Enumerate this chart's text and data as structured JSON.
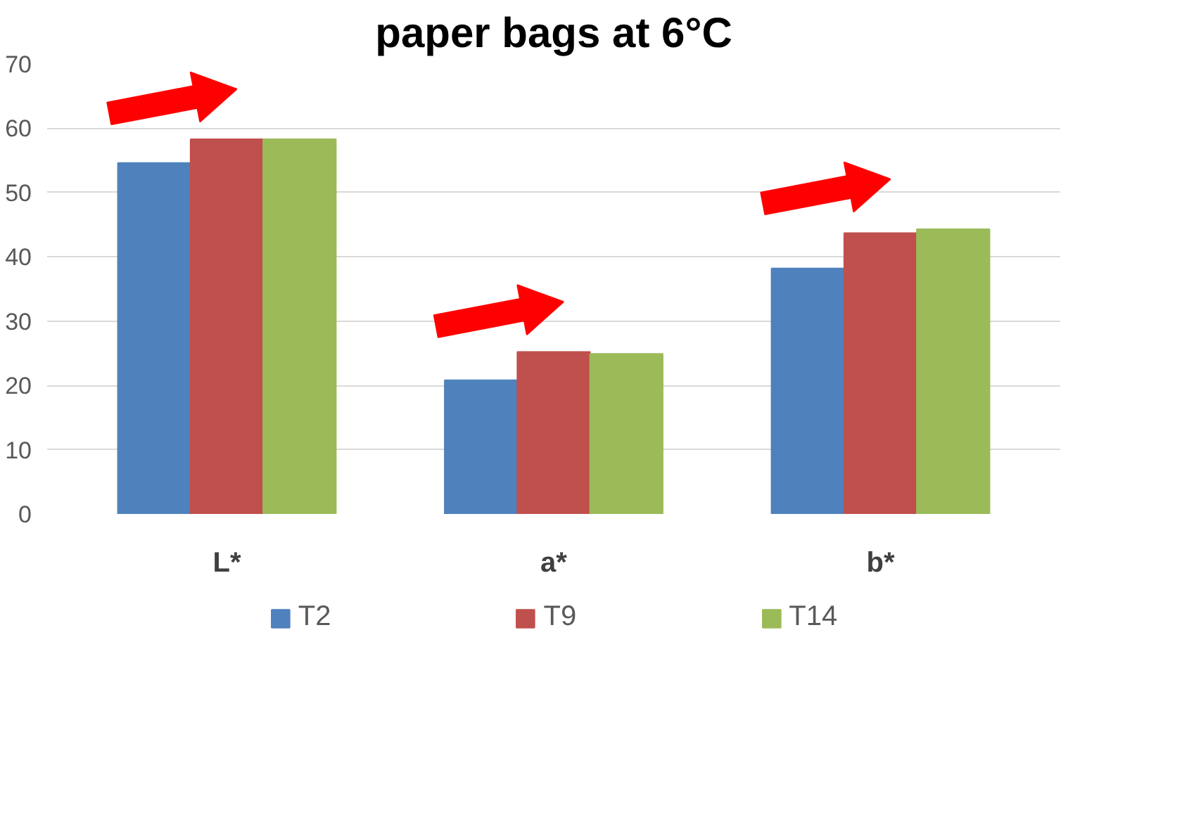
{
  "chart_data": {
    "type": "bar",
    "title": "paper bags at 6°C",
    "categories": [
      "L*",
      "a*",
      "b*"
    ],
    "series": [
      {
        "name": "T2",
        "color": "#4f81bd",
        "values": [
          54.6,
          20.8,
          38.2
        ]
      },
      {
        "name": "T9",
        "color": "#c0504d",
        "values": [
          58.3,
          25.2,
          43.7
        ]
      },
      {
        "name": "T14",
        "color": "#9bbb59",
        "values": [
          58.3,
          24.9,
          44.3
        ]
      }
    ],
    "ylim": [
      0,
      70
    ],
    "yticks": [
      0,
      10,
      20,
      30,
      40,
      50,
      60,
      70
    ],
    "grid": "y",
    "legend": "bottom"
  }
}
